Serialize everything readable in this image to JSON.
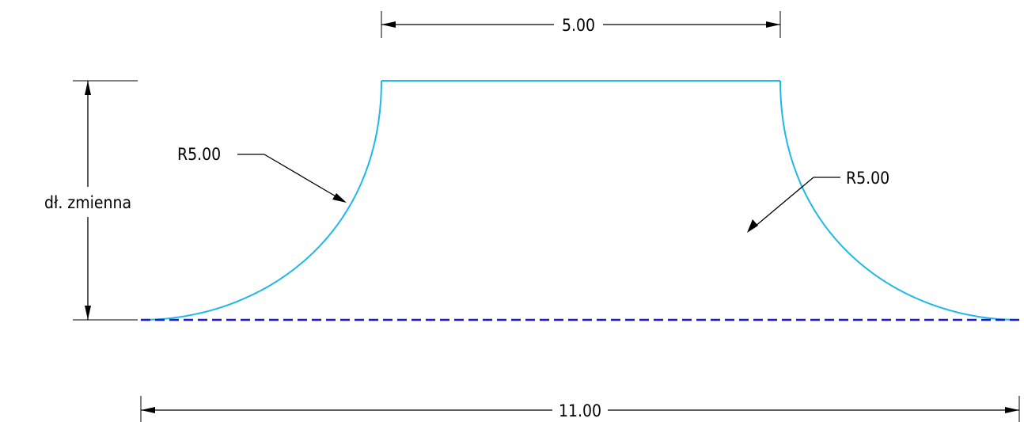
{
  "colors": {
    "profile": "#1fb8e8",
    "axis": "#1a1ad6",
    "dimension": "#000000"
  },
  "dimensions": {
    "top_width": "5.00",
    "bottom_width": "11.00",
    "left_radius": "R5.00",
    "right_radius": "R5.00",
    "height_label": "dł. zmienna"
  }
}
